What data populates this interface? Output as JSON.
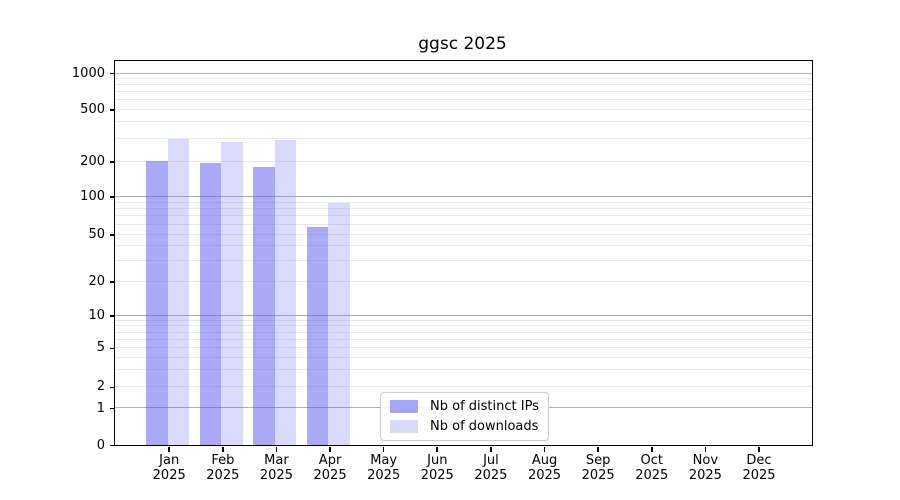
{
  "title": "ggsc 2025",
  "chart_data": {
    "type": "bar",
    "title": "ggsc 2025",
    "x_year": "2025",
    "categories": [
      "Jan",
      "Feb",
      "Mar",
      "Apr",
      "May",
      "Jun",
      "Jul",
      "Aug",
      "Sep",
      "Oct",
      "Nov",
      "Dec"
    ],
    "series": [
      {
        "name": "Nb of distinct IPs",
        "color": "rgba(85,85,240,0.50)",
        "legend_color": "#a6a6f8",
        "values": [
          200,
          195,
          180,
          57,
          0,
          0,
          0,
          0,
          0,
          0,
          0,
          0
        ]
      },
      {
        "name": "Nb of downloads",
        "color": "rgba(85,85,240,0.22)",
        "legend_color": "#d9d9f8",
        "values": [
          295,
          280,
          290,
          89,
          0,
          0,
          0,
          0,
          0,
          0,
          0,
          0
        ]
      }
    ],
    "y_scale": "symlog",
    "y_ticks": [
      0,
      1,
      2,
      5,
      10,
      20,
      50,
      100,
      200,
      500,
      1000
    ],
    "ylim": [
      0,
      1300
    ],
    "xlabel": "",
    "ylabel": "",
    "grid": "horizontal; dark lines at powers of 10, faint log minors",
    "legend_position": "lower center inside plot",
    "colors": {
      "grid_major": "#b0b0b0",
      "grid_minor": "#e9e9e9",
      "axis_frame": "#000000",
      "background": "#ffffff"
    }
  },
  "legend": {
    "items": [
      {
        "label": "Nb of distinct IPs"
      },
      {
        "label": "Nb of downloads"
      }
    ]
  }
}
